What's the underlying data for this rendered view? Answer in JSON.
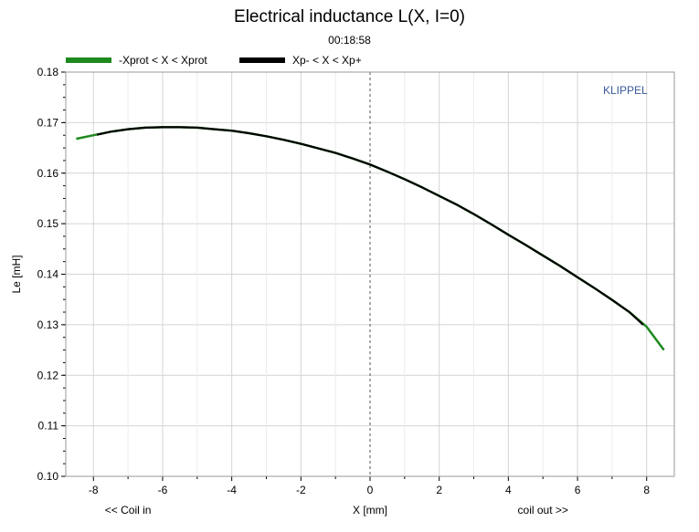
{
  "header": {
    "title": "Electrical inductance L(X, I=0)",
    "subtitle": "00:18:58"
  },
  "watermark": "KLIPPEL",
  "colors": {
    "green": "#1e8a1e",
    "black": "#000000",
    "grid": "#d4d4d4",
    "frame": "#9a9a9a"
  },
  "legend": [
    {
      "label": "-Xprot < X < Xprot",
      "color": "#1e8a1e"
    },
    {
      "label": "Xp- < X < Xp+",
      "color": "#000000"
    }
  ],
  "chart_data": {
    "type": "line",
    "title": "Electrical inductance L(X, I=0)",
    "xlabel": "X [mm]",
    "xlabel_left": "<< Coil in",
    "xlabel_right": "coil out >>",
    "ylabel": "Le [mH]",
    "xlim": [
      -8.8,
      8.8
    ],
    "ylim": [
      0.1,
      0.18
    ],
    "xticks": [
      -8,
      -6,
      -4,
      -2,
      0,
      2,
      4,
      6,
      8
    ],
    "yticks": [
      0.1,
      0.11,
      0.12,
      0.13,
      0.14,
      0.15,
      0.16,
      0.17,
      0.18
    ],
    "ytick_labels": [
      "0.10",
      "0.11",
      "0.12",
      "0.13",
      "0.14",
      "0.15",
      "0.16",
      "0.17",
      "0.18"
    ],
    "grid": true,
    "zero_line": "dashed vertical at X=0",
    "series": [
      {
        "name": "-Xprot < X < Xprot",
        "color": "#1e8a1e",
        "x": [
          -8.5,
          -8.0,
          -7.5,
          -7.0,
          -6.5,
          -6.0,
          -5.5,
          -5.0,
          -4.5,
          -4.0,
          -3.5,
          -3.0,
          -2.5,
          -2.0,
          -1.5,
          -1.0,
          -0.5,
          0.0,
          0.5,
          1.0,
          1.5,
          2.0,
          2.5,
          3.0,
          3.5,
          4.0,
          4.5,
          5.0,
          5.5,
          6.0,
          6.5,
          7.0,
          7.5,
          8.0,
          8.5
        ],
        "y": [
          0.1668,
          0.1675,
          0.1682,
          0.1687,
          0.169,
          0.1691,
          0.1691,
          0.169,
          0.1687,
          0.1684,
          0.1679,
          0.1673,
          0.1666,
          0.1658,
          0.1649,
          0.164,
          0.1629,
          0.1617,
          0.1603,
          0.1588,
          0.1572,
          0.1555,
          0.1538,
          0.1519,
          0.1499,
          0.1478,
          0.1458,
          0.1437,
          0.1416,
          0.1394,
          0.1372,
          0.1349,
          0.1325,
          0.1296,
          0.125
        ]
      },
      {
        "name": "Xp- < X < Xp+",
        "color": "#000000",
        "x": [
          -7.9,
          -7.5,
          -7.0,
          -6.5,
          -6.0,
          -5.5,
          -5.0,
          -4.5,
          -4.0,
          -3.5,
          -3.0,
          -2.5,
          -2.0,
          -1.5,
          -1.0,
          -0.5,
          0.0,
          0.5,
          1.0,
          1.5,
          2.0,
          2.5,
          3.0,
          3.5,
          4.0,
          4.5,
          5.0,
          5.5,
          6.0,
          6.5,
          7.0,
          7.5,
          7.9
        ],
        "y": [
          0.1676,
          0.1682,
          0.1687,
          0.169,
          0.1691,
          0.1691,
          0.169,
          0.1687,
          0.1684,
          0.1679,
          0.1673,
          0.1666,
          0.1658,
          0.1649,
          0.164,
          0.1629,
          0.1617,
          0.1603,
          0.1588,
          0.1572,
          0.1555,
          0.1538,
          0.1519,
          0.1499,
          0.1478,
          0.1458,
          0.1437,
          0.1416,
          0.1394,
          0.1372,
          0.1349,
          0.1325,
          0.13
        ]
      }
    ]
  }
}
